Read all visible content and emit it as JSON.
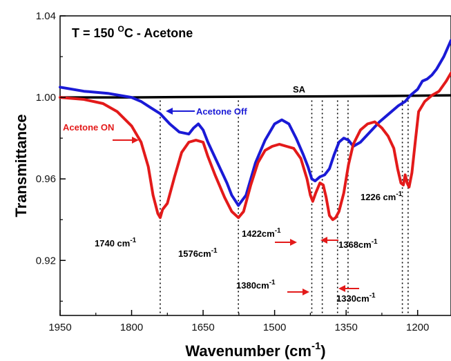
{
  "chart_data": {
    "type": "line",
    "title": "T = 150 ",
    "title_sup": "O",
    "title_rest": "C - Acetone",
    "xlabel": "Wavenumber (cm",
    "xlabel_sup": "-1",
    "xlabel_end": ")",
    "ylabel": "Transmittance",
    "x_reversed": true,
    "xlim": [
      1950,
      1130
    ],
    "ylim": [
      0.893,
      1.04
    ],
    "x_ticks": [
      1950,
      1800,
      1650,
      1500,
      1350,
      1200
    ],
    "y_ticks": [
      0.92,
      0.96,
      1.0,
      1.04
    ],
    "y_tick_labels": [
      "0.92",
      "0.96",
      "1.00",
      "1.04"
    ],
    "grid": false,
    "series": [
      {
        "name": "SA",
        "color": "#000000",
        "x": [
          1950,
          1800,
          1600,
          1400,
          1250,
          1130
        ],
        "y": [
          1.0,
          1.0,
          1.0003,
          1.0005,
          1.0007,
          1.001
        ]
      },
      {
        "name": "Acetone Off",
        "color": "#1a1ad6",
        "x": [
          1950,
          1900,
          1850,
          1800,
          1780,
          1760,
          1740,
          1720,
          1700,
          1680,
          1670,
          1660,
          1650,
          1640,
          1620,
          1600,
          1590,
          1576,
          1560,
          1540,
          1520,
          1500,
          1485,
          1470,
          1455,
          1440,
          1430,
          1422,
          1415,
          1405,
          1395,
          1385,
          1375,
          1365,
          1355,
          1345,
          1335,
          1320,
          1300,
          1280,
          1260,
          1240,
          1226,
          1215,
          1200,
          1190,
          1180,
          1170,
          1160,
          1145,
          1130
        ],
        "y": [
          1.005,
          1.003,
          1.002,
          1.0,
          0.998,
          0.995,
          0.992,
          0.987,
          0.983,
          0.982,
          0.985,
          0.987,
          0.984,
          0.978,
          0.968,
          0.958,
          0.952,
          0.947,
          0.952,
          0.968,
          0.979,
          0.987,
          0.989,
          0.987,
          0.98,
          0.972,
          0.966,
          0.96,
          0.959,
          0.961,
          0.962,
          0.965,
          0.972,
          0.978,
          0.98,
          0.979,
          0.976,
          0.978,
          0.983,
          0.988,
          0.992,
          0.996,
          0.998,
          1.001,
          1.004,
          1.008,
          1.009,
          1.011,
          1.014,
          1.02,
          1.028
        ]
      },
      {
        "name": "Acetone ON",
        "color": "#e31a1a",
        "x": [
          1950,
          1900,
          1860,
          1830,
          1800,
          1780,
          1765,
          1755,
          1745,
          1740,
          1735,
          1725,
          1710,
          1695,
          1680,
          1665,
          1650,
          1640,
          1625,
          1605,
          1590,
          1576,
          1565,
          1550,
          1535,
          1520,
          1505,
          1490,
          1475,
          1460,
          1445,
          1432,
          1425,
          1420,
          1414,
          1405,
          1398,
          1392,
          1385,
          1378,
          1372,
          1365,
          1355,
          1345,
          1335,
          1320,
          1305,
          1290,
          1275,
          1262,
          1250,
          1242,
          1235,
          1230,
          1226,
          1222,
          1218,
          1212,
          1205,
          1198,
          1185,
          1170,
          1155,
          1140,
          1130
        ],
        "y": [
          1.0,
          0.999,
          0.997,
          0.993,
          0.986,
          0.978,
          0.966,
          0.952,
          0.943,
          0.941,
          0.945,
          0.948,
          0.961,
          0.973,
          0.978,
          0.979,
          0.978,
          0.971,
          0.962,
          0.951,
          0.944,
          0.941,
          0.944,
          0.957,
          0.968,
          0.974,
          0.976,
          0.977,
          0.976,
          0.975,
          0.97,
          0.96,
          0.952,
          0.949,
          0.953,
          0.958,
          0.957,
          0.951,
          0.942,
          0.94,
          0.941,
          0.944,
          0.953,
          0.967,
          0.977,
          0.984,
          0.987,
          0.988,
          0.985,
          0.981,
          0.975,
          0.965,
          0.958,
          0.957,
          0.962,
          0.958,
          0.956,
          0.963,
          0.978,
          0.993,
          0.998,
          1.001,
          1.003,
          1.008,
          1.012
        ]
      }
    ],
    "annotations": {
      "sa_label": "SA",
      "off_label": "Acetone Off",
      "on_label": "Acetone ON",
      "peaks": [
        {
          "base": "1740 cm",
          "sup": "-1",
          "x": 1740
        },
        {
          "base": "1576cm",
          "sup": "-1",
          "x": 1576
        },
        {
          "base": "1422cm",
          "sup": "-1",
          "x": 1422
        },
        {
          "base": "1380cm",
          "sup": "-1",
          "x": 1380
        },
        {
          "base": "1368cm",
          "sup": "-1",
          "x": 1368
        },
        {
          "base": "1330cm",
          "sup": "-1",
          "x": 1330
        },
        {
          "base": "1226 cm",
          "sup": "-1",
          "x": 1226
        }
      ],
      "dotted_x": [
        1740,
        1576,
        1422,
        1400,
        1368,
        1346,
        1232,
        1220
      ]
    }
  }
}
